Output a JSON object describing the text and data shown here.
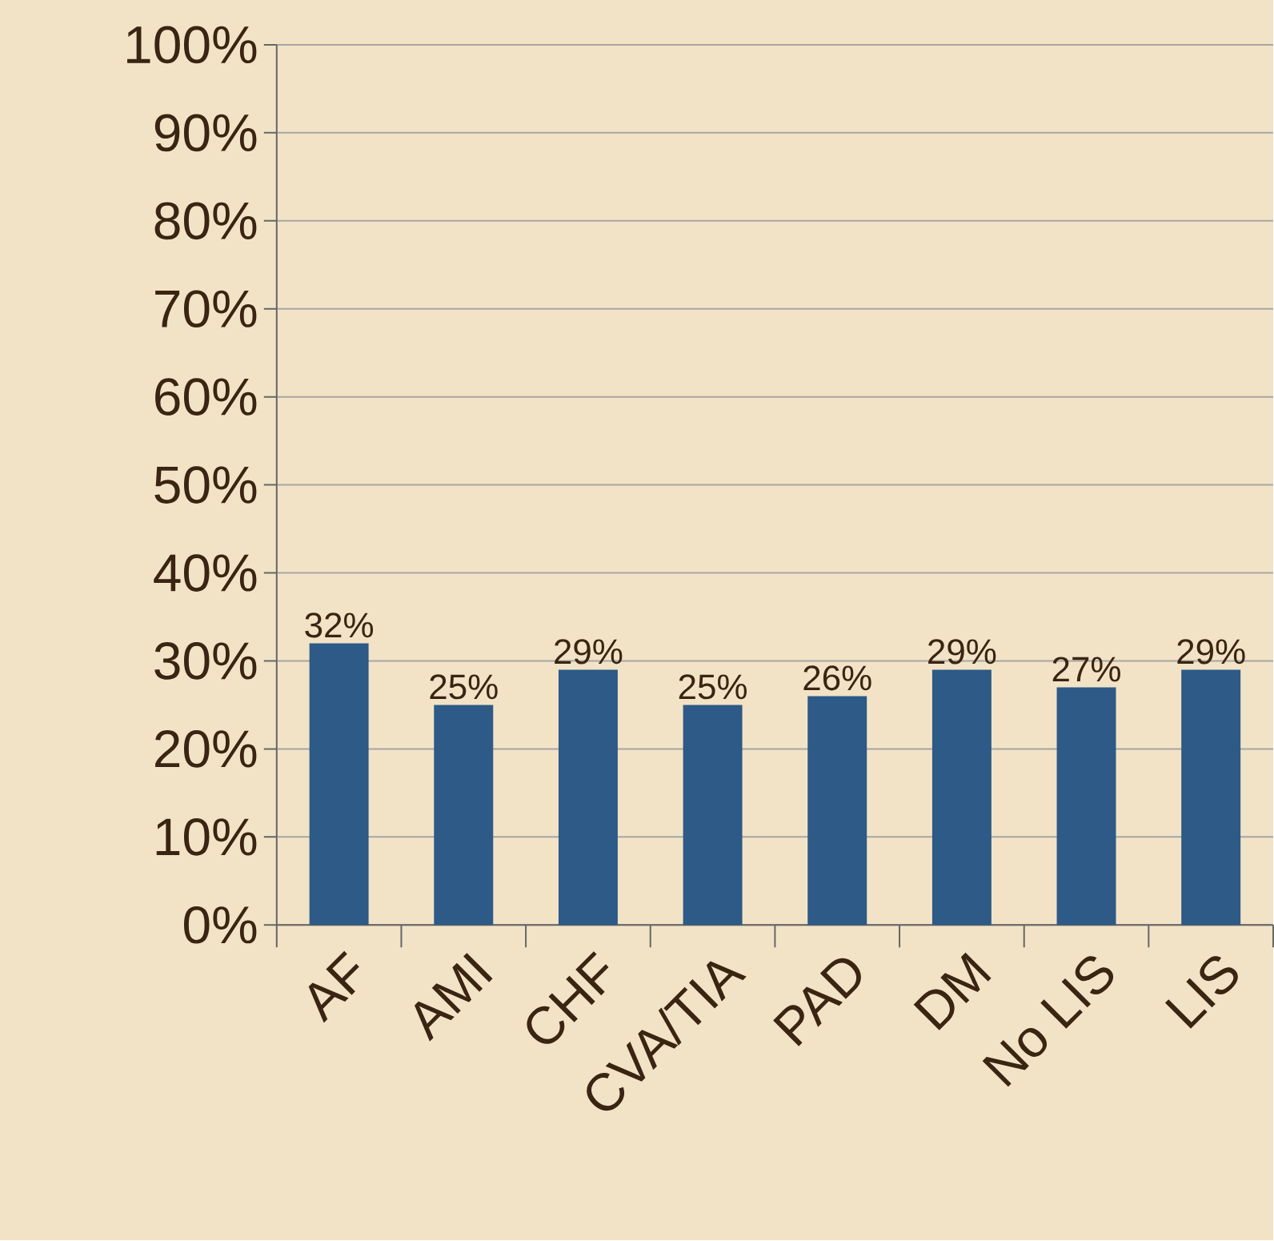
{
  "chart_data": {
    "type": "bar",
    "categories": [
      "AF",
      "AMI",
      "CHF",
      "CVA/TIA",
      "PAD",
      "DM",
      "No LIS",
      "LIS"
    ],
    "values": [
      32,
      25,
      29,
      25,
      26,
      29,
      27,
      29
    ],
    "value_labels": [
      "32%",
      "25%",
      "29%",
      "25%",
      "26%",
      "29%",
      "27%",
      "29%"
    ],
    "color": "#2d5a86",
    "ylim": [
      0,
      100
    ],
    "yticks": [
      {
        "value": 0,
        "label": "0%"
      },
      {
        "value": 10,
        "label": "10%"
      },
      {
        "value": 20,
        "label": "20%"
      },
      {
        "value": 30,
        "label": "30%"
      },
      {
        "value": 40,
        "label": "40%"
      },
      {
        "value": 50,
        "label": "50%"
      },
      {
        "value": 60,
        "label": "60%"
      },
      {
        "value": 70,
        "label": "70%"
      },
      {
        "value": 80,
        "label": "80%"
      },
      {
        "value": 90,
        "label": "90%"
      },
      {
        "value": 100,
        "label": "100%"
      }
    ],
    "grid": "y"
  }
}
